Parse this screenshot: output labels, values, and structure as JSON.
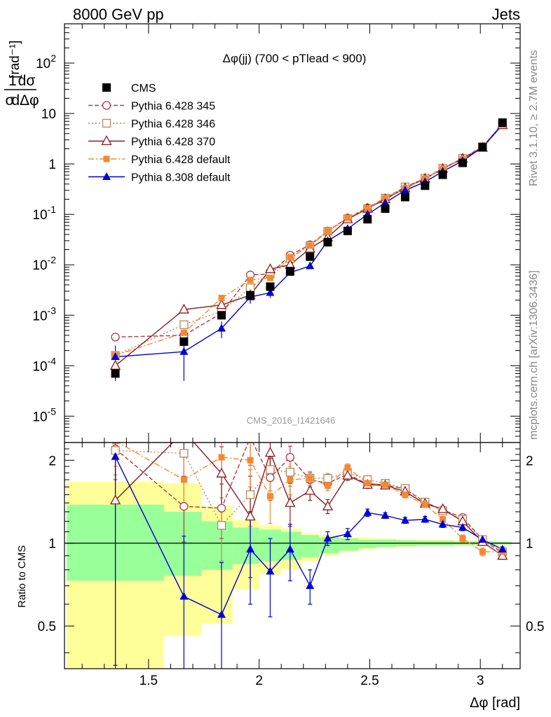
{
  "header": {
    "left": "8000 GeV pp",
    "right": "Jets"
  },
  "side_labels": {
    "rivet": "Rivet 3.1.10, ≥ 2.7M events",
    "mcplots": "mcplots.cern.ch [arXiv:1306.3436]"
  },
  "chart_data": {
    "type": "scatter",
    "title": "Δφ(jj) (700 < pTlead <  900)",
    "analysis_label": "CMS_2016_I1421646",
    "xlabel": "Δφ [rad]",
    "ylabel_top": {
      "num": "1",
      "num2": "dσ",
      "den": "σ",
      "den2": "dΔφ",
      "unit": "[rad⁻¹]"
    },
    "ylabel_bottom": "Ratio to CMS",
    "xlim": [
      1.12,
      3.18
    ],
    "ylim_top": [
      3e-06,
      600
    ],
    "ylog_top": true,
    "ylim_bottom": [
      0.35,
      2.32
    ],
    "ylog_bottom": true,
    "x_ticks": [
      1.5,
      2,
      2.5,
      3
    ],
    "x_tick_labels": [
      "1.5",
      "2",
      "2.5",
      "3"
    ],
    "y_ticks_top": [
      {
        "v": 1e-05,
        "base": "10",
        "exp": "-5"
      },
      {
        "v": 0.0001,
        "base": "10",
        "exp": "-4"
      },
      {
        "v": 0.001,
        "base": "10",
        "exp": "-3"
      },
      {
        "v": 0.01,
        "base": "10",
        "exp": "-2"
      },
      {
        "v": 0.1,
        "base": "10",
        "exp": "-1"
      },
      {
        "v": 1,
        "base": "1",
        "exp": ""
      },
      {
        "v": 10,
        "base": "10",
        "exp": ""
      },
      {
        "v": 100,
        "base": "10",
        "exp": "2"
      }
    ],
    "y_ticks_bottom": [
      {
        "v": 0.5,
        "label": "0.5"
      },
      {
        "v": 1,
        "label": "1"
      },
      {
        "v": 2,
        "label": "2"
      }
    ],
    "legend_position": "top-left",
    "x": [
      1.35,
      1.66,
      1.83,
      1.96,
      2.05,
      2.14,
      2.23,
      2.31,
      2.4,
      2.49,
      2.57,
      2.66,
      2.75,
      2.83,
      2.92,
      3.01,
      3.1
    ],
    "data": {
      "name": "CMS",
      "values": [
        7e-05,
        0.0003,
        0.001,
        0.0025,
        0.0037,
        0.0075,
        0.0145,
        0.028,
        0.047,
        0.08,
        0.13,
        0.22,
        0.37,
        0.61,
        1.05,
        2.15,
        6.6
      ]
    },
    "series": [
      {
        "name": "Pythia 6.428 345",
        "color": "#b03a48",
        "marker": "circle-open",
        "dash": "6,3",
        "values": [
          0.00037,
          0.0004,
          0.0011,
          0.0063,
          0.0066,
          0.0155,
          0.025,
          0.047,
          0.085,
          0.135,
          0.21,
          0.35,
          0.52,
          0.81,
          1.3,
          2.2,
          6.1
        ],
        "ratio": [
          2.2,
          1.36,
          1.34,
          2.42,
          1.73,
          2.05,
          1.7,
          1.65,
          1.78,
          1.64,
          1.63,
          1.57,
          1.41,
          1.32,
          1.24,
          1.03,
          0.92
        ],
        "ratio_err": [
          0.5,
          0.35,
          0.3,
          0.5,
          0.3,
          0.2,
          0.1,
          0.07,
          0.06,
          0.05,
          0.04,
          0.04,
          0.03,
          0.03,
          0.03,
          0.03,
          0.02
        ]
      },
      {
        "name": "Pythia 6.428 346",
        "color": "#b8865a",
        "marker": "square-open",
        "dash": "2,3",
        "values": [
          0.00016,
          0.00065,
          0.0012,
          0.0035,
          0.0067,
          0.0135,
          0.024,
          0.046,
          0.082,
          0.13,
          0.21,
          0.35,
          0.52,
          0.82,
          1.28,
          2.2,
          6.0
        ],
        "ratio": [
          2.17,
          2.12,
          1.16,
          1.5,
          1.85,
          1.81,
          1.72,
          1.72,
          1.8,
          1.7,
          1.65,
          1.58,
          1.41,
          1.31,
          1.22,
          1.03,
          0.93
        ],
        "ratio_err": [
          0.4,
          0.4,
          0.3,
          0.35,
          0.3,
          0.2,
          0.1,
          0.07,
          0.06,
          0.05,
          0.04,
          0.04,
          0.03,
          0.03,
          0.03,
          0.03,
          0.02
        ]
      },
      {
        "name": "Pythia 6.428 370",
        "color": "#8b1a1a",
        "marker": "triangle-open",
        "dash": "",
        "values": [
          0.0001,
          0.0013,
          0.0016,
          0.0025,
          0.0082,
          0.01,
          0.021,
          0.035,
          0.08,
          0.13,
          0.2,
          0.33,
          0.51,
          0.8,
          1.27,
          2.1,
          5.9
        ],
        "ratio": [
          1.43,
          2.55,
          1.79,
          1.25,
          2.13,
          1.4,
          1.55,
          1.36,
          1.76,
          1.63,
          1.62,
          1.54,
          1.39,
          1.33,
          1.2,
          1.01,
          0.9
        ],
        "ratio_err": [
          1.5,
          0.8,
          0.45,
          0.5,
          0.4,
          0.25,
          0.12,
          0.08,
          0.07,
          0.05,
          0.04,
          0.04,
          0.03,
          0.03,
          0.03,
          0.03,
          0.02
        ]
      },
      {
        "name": "Pythia 6.428 default",
        "color": "#f5882f",
        "marker": "square-filled",
        "dash": "8,3,2,3",
        "values": [
          0.00016,
          0.00045,
          0.0022,
          0.005,
          0.0055,
          0.014,
          0.024,
          0.046,
          0.085,
          0.13,
          0.21,
          0.33,
          0.51,
          0.8,
          1.25,
          2.05,
          6.1
        ],
        "ratio": [
          2.35,
          1.7,
          2.05,
          2.0,
          1.48,
          1.7,
          1.72,
          1.62,
          1.88,
          1.65,
          1.63,
          1.5,
          1.38,
          1.22,
          1.04,
          0.93,
          0.93
        ],
        "ratio_err": [
          0.45,
          0.35,
          0.3,
          0.4,
          0.3,
          0.2,
          0.1,
          0.07,
          0.06,
          0.05,
          0.04,
          0.04,
          0.03,
          0.03,
          0.03,
          0.03,
          0.02
        ]
      },
      {
        "name": "Pythia 8.308 default",
        "color": "#0000d6",
        "marker": "triangle-filled",
        "dash": "",
        "values": [
          0.00015,
          0.00019,
          0.00055,
          0.0023,
          0.0028,
          0.007,
          0.0095,
          0.03,
          0.052,
          0.1,
          0.17,
          0.3,
          0.44,
          0.71,
          1.15,
          2.15,
          6.2
        ],
        "ratio": [
          2.06,
          0.64,
          0.55,
          0.95,
          0.79,
          0.95,
          0.7,
          1.04,
          1.08,
          1.29,
          1.26,
          1.21,
          1.22,
          1.17,
          1.14,
          1.03,
          0.95
        ],
        "ratio_err": [
          1.7,
          0.42,
          0.3,
          0.35,
          0.25,
          0.22,
          0.1,
          0.06,
          0.05,
          0.04,
          0.03,
          0.03,
          0.03,
          0.03,
          0.03,
          0.03,
          0.02
        ]
      }
    ],
    "top_errors_visible": {
      "Pythia 8.308 default": [
        0.0001,
        0.00014,
        0.0002,
        0.0006,
        0.0006,
        0.0008,
        0.0005,
        0,
        0,
        0,
        0,
        0,
        0,
        0,
        0,
        0,
        0
      ]
    },
    "bands": {
      "edges": [
        1.13,
        1.57,
        1.74,
        1.88,
        2.0,
        2.1,
        2.19,
        2.27,
        2.36,
        2.45,
        2.53,
        2.62,
        2.71,
        2.79,
        2.88,
        2.97,
        3.06,
        3.14
      ],
      "yellow_lo": [
        0.35,
        0.46,
        0.51,
        0.68,
        0.77,
        0.8,
        0.86,
        0.9,
        0.93,
        0.95,
        0.96,
        0.97,
        0.975,
        0.975,
        0.98,
        0.98,
        0.985
      ],
      "yellow_hi": [
        1.67,
        1.65,
        1.36,
        1.21,
        1.16,
        1.13,
        1.09,
        1.07,
        1.05,
        1.05,
        1.04,
        1.035,
        1.03,
        1.03,
        1.025,
        1.02,
        1.015
      ],
      "green_lo": [
        0.73,
        0.76,
        0.8,
        0.84,
        0.86,
        0.87,
        0.89,
        0.92,
        0.94,
        0.96,
        0.97,
        0.975,
        0.98,
        0.98,
        0.985,
        0.985,
        0.99
      ],
      "green_hi": [
        1.38,
        1.3,
        1.2,
        1.14,
        1.12,
        1.1,
        1.07,
        1.05,
        1.04,
        1.03,
        1.03,
        1.025,
        1.02,
        1.02,
        1.015,
        1.015,
        1.01
      ]
    }
  }
}
